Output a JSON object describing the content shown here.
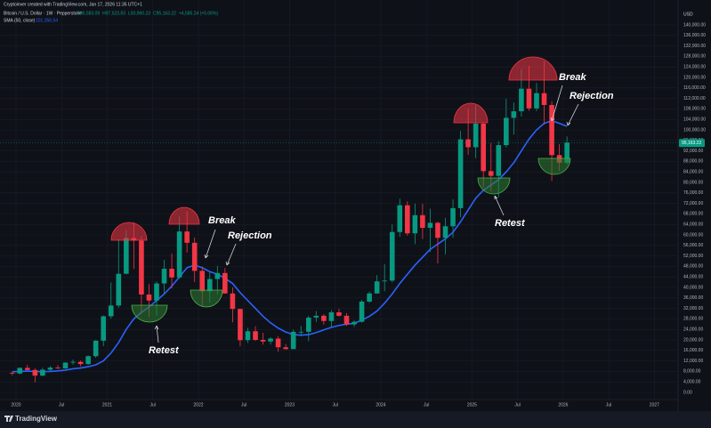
{
  "chart_data": {
    "type": "candlestick",
    "credit": "Cryptoinver created with TradingView.com, Jan 17, 2026 11:35 UTC+1",
    "symbol": "Bitcoin / U.S. Dollar · 1W · Pepperstone",
    "ohlc_text": [
      "O95,583.09",
      "H97,523.83",
      "L93,960.23",
      "C95,163.22",
      "+4,585.24 (+5.06%)"
    ],
    "sma_name": "SMA (50, close)",
    "sma_value_label": "101,356.54",
    "currency": "USD",
    "price_label": "95,163.22",
    "brand": "TradingView",
    "up_color": "#089981",
    "down_color": "#f23645",
    "sma_color": "#2962ff",
    "annotations": [
      "Break",
      "Rejection",
      "Retest",
      "Break",
      "Rejection",
      "Retest"
    ],
    "x": [
      "2019-12",
      "2020-01",
      "2020-02",
      "2020-03",
      "2020-04",
      "2020-05",
      "2020-06",
      "2020-07",
      "2020-08",
      "2020-09",
      "2020-10",
      "2020-11",
      "2020-12",
      "2021-01",
      "2021-02",
      "2021-03",
      "2021-04",
      "2021-05",
      "2021-06",
      "2021-07",
      "2021-08",
      "2021-09",
      "2021-10",
      "2021-11",
      "2021-12",
      "2022-01",
      "2022-02",
      "2022-03",
      "2022-04",
      "2022-05",
      "2022-06",
      "2022-07",
      "2022-08",
      "2022-09",
      "2022-10",
      "2022-11",
      "2022-12",
      "2023-01",
      "2023-02",
      "2023-03",
      "2023-04",
      "2023-05",
      "2023-06",
      "2023-07",
      "2023-08",
      "2023-09",
      "2023-10",
      "2023-11",
      "2023-12",
      "2024-01",
      "2024-02",
      "2024-03",
      "2024-04",
      "2024-05",
      "2024-06",
      "2024-07",
      "2024-08",
      "2024-09",
      "2024-10",
      "2024-11",
      "2024-12",
      "2025-01",
      "2025-02",
      "2025-03",
      "2025-04",
      "2025-05",
      "2025-06",
      "2025-07",
      "2025-08",
      "2025-09",
      "2025-10",
      "2025-11",
      "2025-12",
      "2026-01"
    ],
    "open": [
      7500,
      7200,
      9350,
      8550,
      6400,
      8650,
      9450,
      9150,
      11350,
      11650,
      10800,
      13800,
      19700,
      29000,
      33100,
      45200,
      58800,
      57800,
      37300,
      35000,
      41500,
      47100,
      43800,
      61300,
      57000,
      46300,
      38500,
      43200,
      45500,
      37700,
      31800,
      19900,
      23300,
      20000,
      19400,
      20500,
      17200,
      16500,
      23100,
      23100,
      28500,
      29200,
      27200,
      30500,
      29200,
      25900,
      26900,
      34600,
      37700,
      42300,
      42600,
      61100,
      71300,
      60600,
      67500,
      62700,
      64600,
      58900,
      63300,
      70200,
      96400,
      93400,
      102400,
      84300,
      82500,
      94200,
      104600,
      107100,
      115700,
      108200,
      114000,
      109500,
      90400,
      87500
    ],
    "high": [
      7700,
      9500,
      10500,
      9200,
      9400,
      10000,
      10400,
      11450,
      12500,
      12100,
      14100,
      19900,
      29300,
      41900,
      58300,
      61800,
      64800,
      59500,
      41300,
      42300,
      50500,
      52900,
      67000,
      69000,
      59000,
      47900,
      45800,
      48200,
      47400,
      40000,
      31900,
      24600,
      25200,
      22700,
      21000,
      21400,
      18400,
      23900,
      25300,
      29200,
      31000,
      29800,
      31400,
      31800,
      30200,
      27500,
      35200,
      38400,
      44700,
      48900,
      64000,
      73800,
      72800,
      71900,
      71900,
      70000,
      65000,
      66500,
      73600,
      99600,
      108300,
      109300,
      102700,
      95000,
      95700,
      111900,
      110400,
      123200,
      124400,
      117900,
      126200,
      111000,
      94600,
      97500
    ],
    "low": [
      6500,
      6900,
      8500,
      3800,
      6200,
      8100,
      8900,
      8950,
      10600,
      9900,
      10500,
      13200,
      17600,
      28100,
      32300,
      45000,
      47000,
      30000,
      28800,
      29300,
      37300,
      39600,
      43300,
      53300,
      42000,
      33000,
      34300,
      37200,
      37600,
      26700,
      17600,
      18800,
      19600,
      18200,
      18200,
      15500,
      16300,
      16500,
      21400,
      19500,
      26900,
      25800,
      24800,
      28900,
      25300,
      24900,
      26600,
      34100,
      37600,
      38500,
      41900,
      59300,
      59700,
      56500,
      58400,
      53500,
      49100,
      52600,
      58900,
      66800,
      90500,
      89200,
      78200,
      76600,
      74400,
      93300,
      98200,
      105100,
      107300,
      107200,
      102000,
      80600,
      84400,
      86800
    ],
    "close": [
      7200,
      9350,
      8550,
      6400,
      8650,
      9450,
      9150,
      11350,
      11650,
      10800,
      13800,
      19700,
      29000,
      33100,
      45200,
      58800,
      57800,
      37300,
      35000,
      41500,
      47100,
      43800,
      61300,
      57000,
      46300,
      38500,
      43200,
      45500,
      37700,
      31800,
      19900,
      23300,
      20000,
      19400,
      20500,
      17200,
      16500,
      23100,
      23100,
      28500,
      29200,
      27200,
      30500,
      29200,
      25900,
      26900,
      34600,
      37700,
      42300,
      42600,
      61100,
      71300,
      60600,
      67500,
      62700,
      64600,
      58900,
      63300,
      70200,
      96400,
      93400,
      102400,
      84300,
      82500,
      94200,
      104600,
      107100,
      115700,
      108200,
      114000,
      109500,
      90400,
      87500,
      95163.22
    ],
    "sma": [
      7900,
      8000,
      8100,
      8000,
      7900,
      8000,
      8200,
      8500,
      9000,
      9300,
      9800,
      10500,
      12000,
      15000,
      19000,
      24000,
      28000,
      30500,
      32500,
      35000,
      37500,
      40500,
      44000,
      47500,
      48500,
      47500,
      46000,
      45000,
      43500,
      41500,
      38000,
      35000,
      32000,
      29000,
      26500,
      24500,
      23000,
      22000,
      21800,
      22000,
      22800,
      23800,
      24800,
      25500,
      26000,
      26300,
      27500,
      29000,
      31000,
      34000,
      37500,
      41500,
      45000,
      48500,
      51500,
      54500,
      56500,
      58500,
      61000,
      65000,
      69500,
      74000,
      77000,
      79000,
      81000,
      84000,
      87500,
      92000,
      96500,
      100000,
      102500,
      103500,
      102500,
      101356.54
    ],
    "ylim": [
      0,
      140000
    ],
    "yticks": [
      {
        "value": 0,
        "label": "0.00"
      },
      {
        "value": 4000,
        "label": "4,000.00"
      },
      {
        "value": 8000,
        "label": "8,000.00"
      },
      {
        "value": 12000,
        "label": "12,000.00"
      },
      {
        "value": 16000,
        "label": "16,000.00"
      },
      {
        "value": 20000,
        "label": "20,000.00"
      },
      {
        "value": 24000,
        "label": "24,000.00"
      },
      {
        "value": 28000,
        "label": "28,000.00"
      },
      {
        "value": 32000,
        "label": "32,000.00"
      },
      {
        "value": 36000,
        "label": "36,000.00"
      },
      {
        "value": 40000,
        "label": "40,000.00"
      },
      {
        "value": 44000,
        "label": "44,000.00"
      },
      {
        "value": 48000,
        "label": "48,000.00"
      },
      {
        "value": 52000,
        "label": "52,000.00"
      },
      {
        "value": 56000,
        "label": "56,000.00"
      },
      {
        "value": 60000,
        "label": "60,000.00"
      },
      {
        "value": 64000,
        "label": "64,000.00"
      },
      {
        "value": 68000,
        "label": "68,000.00"
      },
      {
        "value": 72000,
        "label": "72,000.00"
      },
      {
        "value": 76000,
        "label": "76,000.00"
      },
      {
        "value": 80000,
        "label": "80,000.00"
      },
      {
        "value": 84000,
        "label": "84,000.00"
      },
      {
        "value": 88000,
        "label": "88,000.00"
      },
      {
        "value": 92000,
        "label": "92,000.00"
      },
      {
        "value": 96000,
        "label": "96,000.00"
      },
      {
        "value": 100000,
        "label": "100,000.00"
      },
      {
        "value": 104000,
        "label": "104,000.00"
      },
      {
        "value": 108000,
        "label": "108,000.00"
      },
      {
        "value": 112000,
        "label": "112,000.00"
      },
      {
        "value": 116000,
        "label": "116,000.00"
      },
      {
        "value": 120000,
        "label": "120,000.00"
      },
      {
        "value": 124000,
        "label": "124,000.00"
      },
      {
        "value": 128000,
        "label": "128,000.00"
      },
      {
        "value": 132000,
        "label": "132,000.00"
      },
      {
        "value": 136000,
        "label": "136,000.00"
      },
      {
        "value": 140000,
        "label": "140,000.00"
      }
    ],
    "xticks": [
      {
        "value": "2020-01",
        "label": "2020"
      },
      {
        "value": "2020-07",
        "label": "Jul"
      },
      {
        "value": "2021-01",
        "label": "2021"
      },
      {
        "value": "2021-07",
        "label": "Jul"
      },
      {
        "value": "2022-01",
        "label": "2022"
      },
      {
        "value": "2022-07",
        "label": "Jul"
      },
      {
        "value": "2023-01",
        "label": "2023"
      },
      {
        "value": "2023-07",
        "label": "Jul"
      },
      {
        "value": "2024-01",
        "label": "2024"
      },
      {
        "value": "2024-07",
        "label": "Jul"
      },
      {
        "value": "2025-01",
        "label": "2025"
      },
      {
        "value": "2025-07",
        "label": "Jul"
      },
      {
        "value": "2026-01",
        "label": "2026"
      },
      {
        "value": "2026-07",
        "label": "Jul"
      },
      {
        "value": "2027-01",
        "label": "2027"
      }
    ],
    "grid": true
  }
}
